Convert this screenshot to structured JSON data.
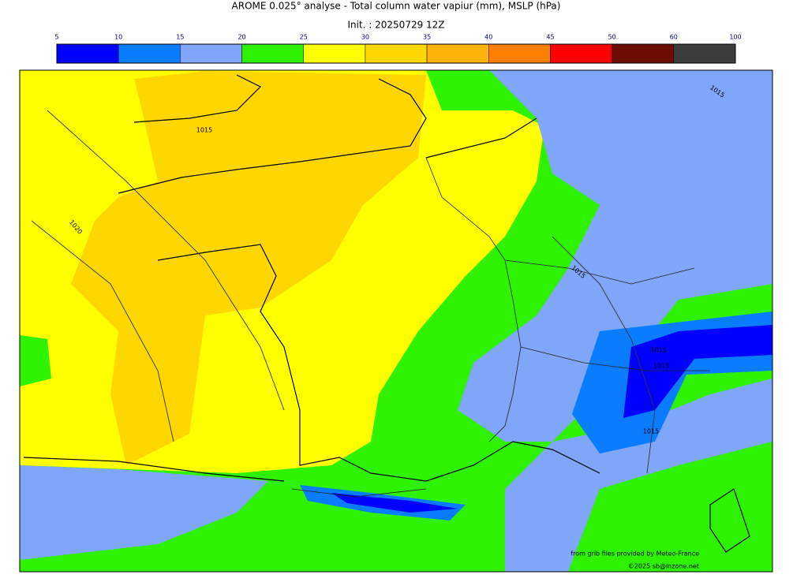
{
  "header": {
    "title": "AROME 0.025° analyse - Total column water vapiur (mm), MSLP (hPa)",
    "init": "Init. : 20250729 12Z"
  },
  "colorbar": {
    "ticks": [
      5,
      10,
      15,
      20,
      25,
      30,
      35,
      40,
      45,
      50,
      60,
      100
    ],
    "colors": [
      "#0000ff",
      "#0a7cff",
      "#7fa6f8",
      "#2ef200",
      "#ffff00",
      "#ffd700",
      "#ffb20a",
      "#ff8000",
      "#ff0000",
      "#6b0d00",
      "#3c3c3c"
    ]
  },
  "map": {
    "isobar_labels": [
      "1015",
      "1020",
      "1015",
      "1015",
      "1015",
      "1015",
      "1015"
    ],
    "credits": [
      "from grib files provided by Meteo-France",
      "©2025 sb@inzone.net"
    ]
  }
}
